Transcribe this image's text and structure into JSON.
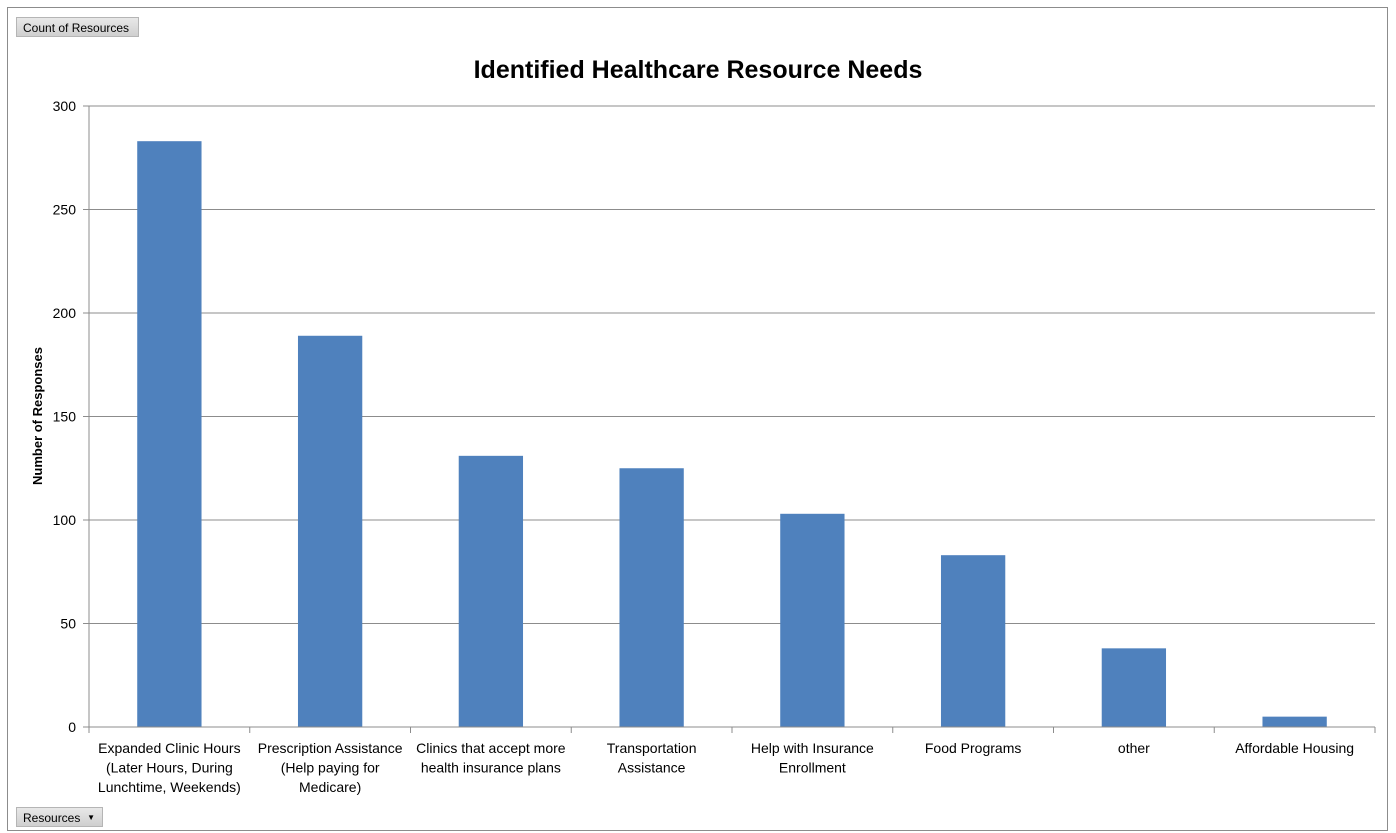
{
  "pivot": {
    "values_field_label": "Count of Resources",
    "axis_field_label": "Resources",
    "axis_field_arrow": "▼"
  },
  "colors": {
    "bar": "#4f81bd",
    "grid": "#8c8c8c",
    "axis": "#8c8c8c"
  },
  "chart_data": {
    "type": "bar",
    "title": "Identified Healthcare Resource Needs",
    "xlabel": "",
    "ylabel": "Number of Responses",
    "ylim": [
      0,
      300
    ],
    "yticks": [
      0,
      50,
      100,
      150,
      200,
      250,
      300
    ],
    "grid": true,
    "legend": "none",
    "categories": [
      [
        "Expanded Clinic Hours",
        "(Later Hours, During",
        "Lunchtime, Weekends)"
      ],
      [
        "Prescription Assistance",
        "(Help paying for",
        "Medicare)"
      ],
      [
        "Clinics that accept more",
        "health insurance plans"
      ],
      [
        "Transportation",
        "Assistance"
      ],
      [
        "Help with Insurance",
        "Enrollment"
      ],
      [
        "Food Programs"
      ],
      [
        "other"
      ],
      [
        "Affordable Housing"
      ]
    ],
    "values": [
      283,
      189,
      131,
      125,
      103,
      83,
      38,
      5
    ]
  }
}
